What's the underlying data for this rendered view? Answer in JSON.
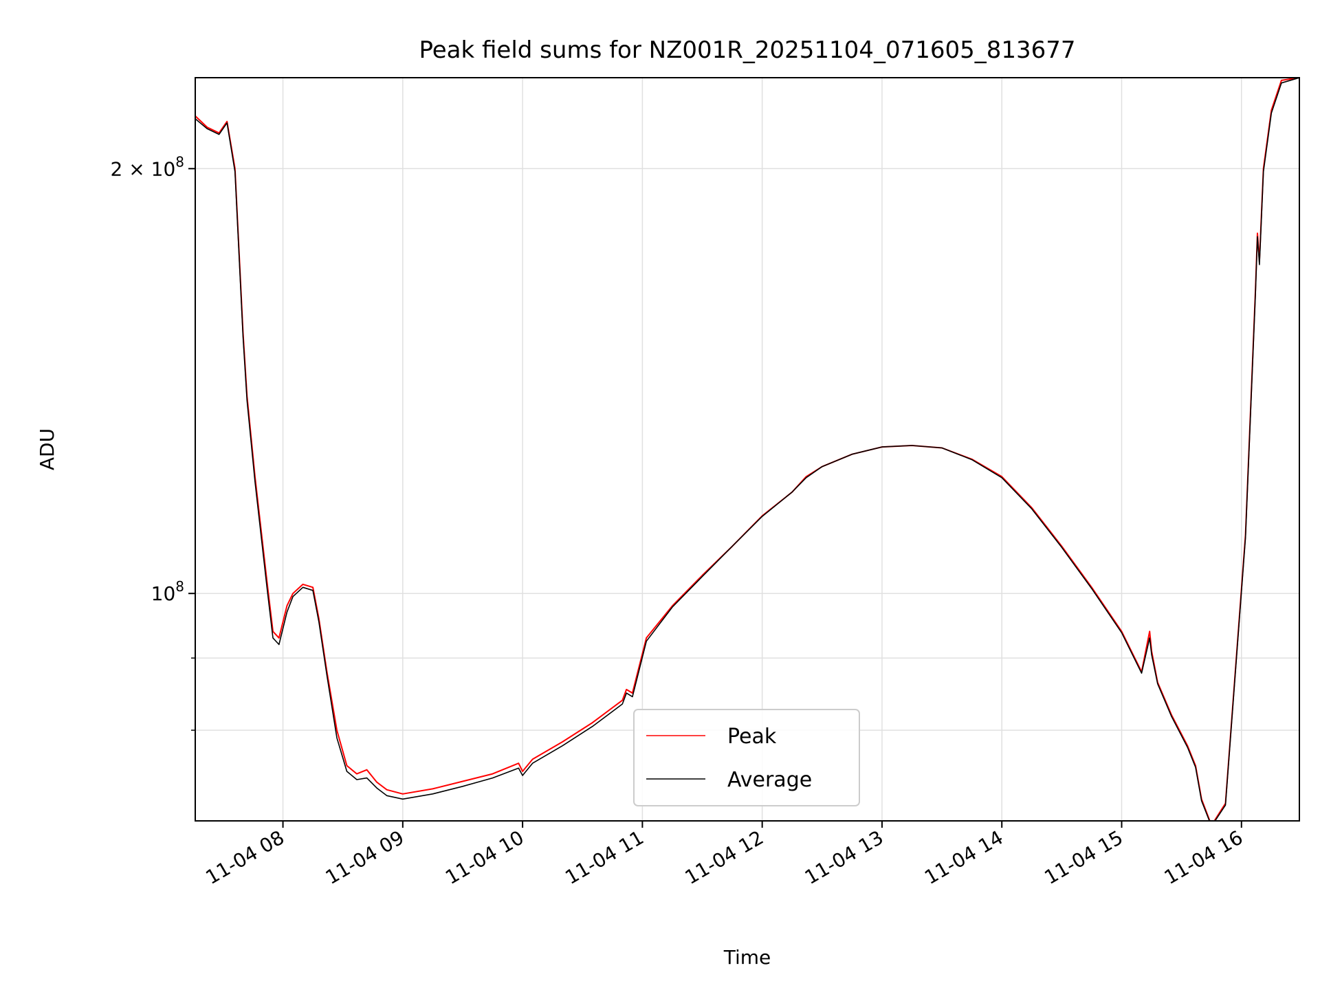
{
  "chart_data": {
    "type": "line",
    "title": "Peak field sums for NZ001R_20251104_071605_813677",
    "xlabel": "Time",
    "ylabel": "ADU",
    "y_scale": "log",
    "xlim": [
      "2025-11-04 07:16:05",
      "2025-11-04 16:29:00"
    ],
    "ylim": [
      69000000,
      232000000
    ],
    "x_ticks": [
      {
        "t": "2025-11-04 08:00",
        "label": "11-04 08"
      },
      {
        "t": "2025-11-04 09:00",
        "label": "11-04 09"
      },
      {
        "t": "2025-11-04 10:00",
        "label": "11-04 10"
      },
      {
        "t": "2025-11-04 11:00",
        "label": "11-04 11"
      },
      {
        "t": "2025-11-04 12:00",
        "label": "11-04 12"
      },
      {
        "t": "2025-11-04 13:00",
        "label": "11-04 13"
      },
      {
        "t": "2025-11-04 14:00",
        "label": "11-04 14"
      },
      {
        "t": "2025-11-04 15:00",
        "label": "11-04 15"
      },
      {
        "t": "2025-11-04 16:00",
        "label": "11-04 16"
      }
    ],
    "y_major_ticks": [
      {
        "value": 100000000,
        "base": "10",
        "exp": "8",
        "mult": ""
      },
      {
        "value": 200000000,
        "base": "10",
        "exp": "8",
        "mult": "2 × "
      }
    ],
    "y_minor_ticks": [
      80000000,
      90000000
    ],
    "grid": true,
    "legend": {
      "position": "lower-center"
    },
    "x": [
      "2025-11-04 07:16",
      "2025-11-04 07:22",
      "2025-11-04 07:28",
      "2025-11-04 07:31",
      "2025-11-04 07:32",
      "2025-11-04 07:36",
      "2025-11-04 07:40",
      "2025-11-04 07:42",
      "2025-11-04 07:46",
      "2025-11-04 07:52",
      "2025-11-04 07:55",
      "2025-11-04 07:58",
      "2025-11-04 08:02",
      "2025-11-04 08:05",
      "2025-11-04 08:10",
      "2025-11-04 08:15",
      "2025-11-04 08:18",
      "2025-11-04 08:22",
      "2025-11-04 08:27",
      "2025-11-04 08:32",
      "2025-11-04 08:37",
      "2025-11-04 08:42",
      "2025-11-04 08:47",
      "2025-11-04 08:52",
      "2025-11-04 09:00",
      "2025-11-04 09:15",
      "2025-11-04 09:30",
      "2025-11-04 09:45",
      "2025-11-04 09:58",
      "2025-11-04 10:00",
      "2025-11-04 10:05",
      "2025-11-04 10:20",
      "2025-11-04 10:35",
      "2025-11-04 10:50",
      "2025-11-04 10:52",
      "2025-11-04 10:55",
      "2025-11-04 11:02",
      "2025-11-04 11:15",
      "2025-11-04 11:30",
      "2025-11-04 11:45",
      "2025-11-04 12:00",
      "2025-11-04 12:15",
      "2025-11-04 12:22",
      "2025-11-04 12:30",
      "2025-11-04 12:45",
      "2025-11-04 13:00",
      "2025-11-04 13:15",
      "2025-11-04 13:30",
      "2025-11-04 13:45",
      "2025-11-04 14:00",
      "2025-11-04 14:15",
      "2025-11-04 14:30",
      "2025-11-04 14:45",
      "2025-11-04 15:00",
      "2025-11-04 15:10",
      "2025-11-04 15:14",
      "2025-11-04 15:15",
      "2025-11-04 15:18",
      "2025-11-04 15:25",
      "2025-11-04 15:33",
      "2025-11-04 15:37",
      "2025-11-04 15:40",
      "2025-11-04 15:45",
      "2025-11-04 15:52",
      "2025-11-04 16:02",
      "2025-11-04 16:07",
      "2025-11-04 16:08",
      "2025-11-04 16:09",
      "2025-11-04 16:11",
      "2025-11-04 16:15",
      "2025-11-04 16:20",
      "2025-11-04 16:29"
    ],
    "series": [
      {
        "name": "Peak",
        "color": "#ff0000",
        "values": [
          218000000,
          214000000,
          212000000,
          215000000,
          216000000,
          200000000,
          153000000,
          138000000,
          121000000,
          102000000,
          94000000,
          93000000,
          98000000,
          100000000,
          101500000,
          101000000,
          96000000,
          88000000,
          80000000,
          75500000,
          74500000,
          75000000,
          73500000,
          72600000,
          72100000,
          72700000,
          73600000,
          74500000,
          75800000,
          74800000,
          76300000,
          78500000,
          81000000,
          84000000,
          85500000,
          85000000,
          93000000,
          98000000,
          103000000,
          108000000,
          113500000,
          118000000,
          121000000,
          123000000,
          125500000,
          127000000,
          127300000,
          126800000,
          124500000,
          121000000,
          115000000,
          108000000,
          101000000,
          94000000,
          88000000,
          94000000,
          91000000,
          86500000,
          82000000,
          78000000,
          75500000,
          71500000,
          68500000,
          71000000,
          110000000,
          164000000,
          180000000,
          172000000,
          200000000,
          220000000,
          231000000,
          232000000
        ]
      },
      {
        "name": "Average",
        "color": "#000000",
        "values": [
          217000000,
          213500000,
          211500000,
          214500000,
          215500000,
          199000000,
          152000000,
          137000000,
          120000000,
          101000000,
          93000000,
          92000000,
          97000000,
          99500000,
          101000000,
          100500000,
          95500000,
          87500000,
          79000000,
          74800000,
          73800000,
          74000000,
          72800000,
          71900000,
          71500000,
          72100000,
          73000000,
          74000000,
          75200000,
          74300000,
          75800000,
          78000000,
          80500000,
          83500000,
          85000000,
          84500000,
          92500000,
          97800000,
          102800000,
          108000000,
          113400000,
          118000000,
          120800000,
          123000000,
          125500000,
          127000000,
          127300000,
          126800000,
          124400000,
          120800000,
          114800000,
          107800000,
          100800000,
          93800000,
          87800000,
          93000000,
          90500000,
          86300000,
          81800000,
          77800000,
          75300000,
          71300000,
          68400000,
          70800000,
          109500000,
          163000000,
          179000000,
          171000000,
          199000000,
          219000000,
          230000000,
          232000000
        ]
      }
    ]
  }
}
